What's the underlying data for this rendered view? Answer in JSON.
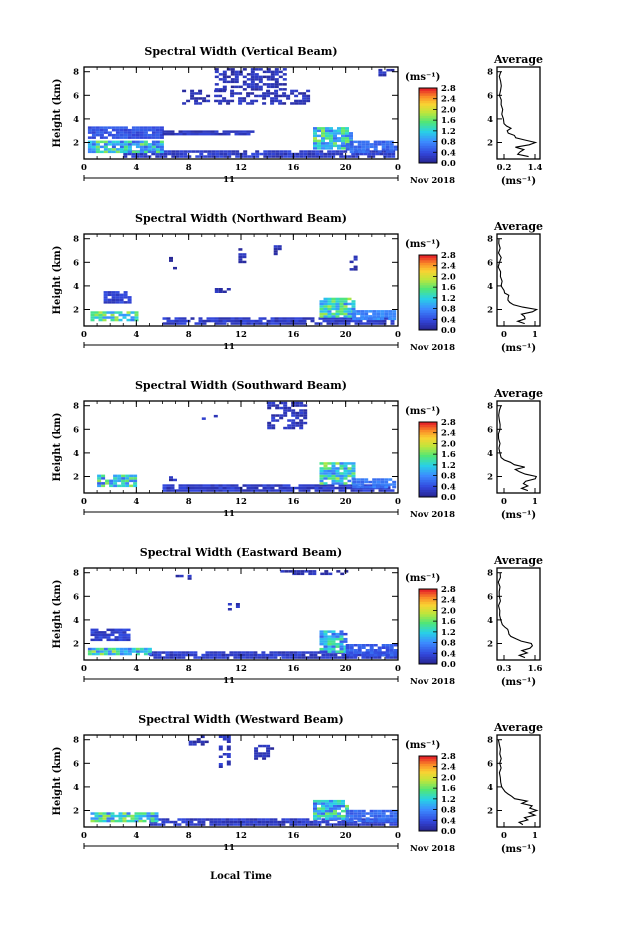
{
  "figure": {
    "x_title": "Local Time",
    "date_label": "11",
    "month_label": "Nov 2018"
  },
  "chart_data": [
    {
      "type": "heatmap",
      "title": "Spectral Width (Vertical Beam)",
      "ylabel": "Height (km)",
      "xlabel": "Local Time",
      "xticks": [
        "0",
        "4",
        "8",
        "12",
        "16",
        "20",
        "0"
      ],
      "yticks": [
        "2",
        "4",
        "6",
        "8"
      ],
      "xlim": [
        0,
        24
      ],
      "ylim": [
        0.6,
        8.4
      ],
      "colorbar": {
        "label": "(ms⁻¹)",
        "ticks": [
          "0.0",
          "0.4",
          "0.8",
          "1.2",
          "1.6",
          "2.0",
          "2.4",
          "2.8"
        ],
        "range": [
          0,
          3.0
        ]
      },
      "regions": [
        {
          "t0": 3,
          "t1": 24,
          "h0": 0.7,
          "h1": 1.3,
          "v": 0.25
        },
        {
          "t0": 0.3,
          "t1": 6,
          "h0": 1.1,
          "h1": 2.1,
          "v": 1.2
        },
        {
          "t0": 17.5,
          "t1": 20.5,
          "h0": 1.4,
          "h1": 3.3,
          "v": 1.3
        },
        {
          "t0": 20,
          "t1": 24,
          "h0": 1.1,
          "h1": 2.0,
          "v": 0.6
        },
        {
          "t0": 0.3,
          "t1": 6,
          "h0": 2.3,
          "h1": 3.2,
          "v": 0.45
        },
        {
          "t0": 6,
          "t1": 13,
          "h0": 2.6,
          "h1": 3.0,
          "v": 0.2
        },
        {
          "t0": 10,
          "t1": 15.5,
          "h0": 6.4,
          "h1": 8.3,
          "v": 0.15
        },
        {
          "t0": 7.5,
          "t1": 17,
          "h0": 5.2,
          "h1": 6.3,
          "v": 0.15
        },
        {
          "t0": 22.5,
          "t1": 24,
          "h0": 7.6,
          "h1": 8.2,
          "v": 0.15
        }
      ],
      "average": {
        "title": "Average",
        "xlabel": "(ms⁻¹)",
        "xticks": [
          "0.2",
          "1.4"
        ],
        "yticks": [
          "2",
          "4",
          "6",
          "8"
        ],
        "xlim": [
          0,
          1.6
        ],
        "ylim": [
          0.6,
          8.4
        ],
        "heights": [
          0.8,
          1.0,
          1.2,
          1.4,
          1.6,
          1.8,
          2.0,
          2.2,
          2.4,
          2.6,
          2.8,
          3.0,
          3.2,
          3.4,
          3.6,
          4.0,
          4.4,
          4.8,
          5.2,
          5.6,
          6.0,
          6.4,
          6.8,
          7.2,
          7.6,
          8.0
        ],
        "values": [
          1.2,
          0.8,
          0.9,
          1.0,
          0.7,
          1.2,
          1.4,
          1.1,
          0.7,
          0.6,
          0.45,
          0.4,
          0.5,
          0.35,
          0.25,
          0.2,
          0.18,
          0.16,
          0.15,
          0.14,
          0.14,
          0.15,
          0.16,
          0.15,
          0.14,
          0.15
        ]
      }
    },
    {
      "type": "heatmap",
      "title": "Spectral Width (Northward Beam)",
      "ylabel": "Height (km)",
      "xlabel": "Local Time",
      "xticks": [
        "0",
        "4",
        "8",
        "12",
        "16",
        "20",
        "0"
      ],
      "yticks": [
        "2",
        "4",
        "6",
        "8"
      ],
      "xlim": [
        0,
        24
      ],
      "ylim": [
        0.6,
        8.4
      ],
      "colorbar": {
        "label": "(ms⁻¹)",
        "ticks": [
          "0.0",
          "0.4",
          "0.8",
          "1.2",
          "1.6",
          "2.0",
          "2.4",
          "2.8"
        ],
        "range": [
          0,
          3.0
        ]
      },
      "regions": [
        {
          "t0": 6,
          "t1": 24,
          "h0": 0.7,
          "h1": 1.2,
          "v": 0.25
        },
        {
          "t0": 0.5,
          "t1": 4,
          "h0": 1.0,
          "h1": 1.7,
          "v": 1.3
        },
        {
          "t0": 1.5,
          "t1": 3.5,
          "h0": 2.5,
          "h1": 3.4,
          "v": 0.3
        },
        {
          "t0": 18,
          "t1": 20.5,
          "h0": 1.3,
          "h1": 2.8,
          "v": 1.3
        },
        {
          "t0": 20.5,
          "t1": 24,
          "h0": 1.1,
          "h1": 1.8,
          "v": 0.8
        },
        {
          "t0": 6.5,
          "t1": 7,
          "h0": 5.4,
          "h1": 6.3,
          "v": 0.15
        },
        {
          "t0": 11.8,
          "t1": 12.3,
          "h0": 5.5,
          "h1": 7.2,
          "v": 0.15
        },
        {
          "t0": 14.5,
          "t1": 15,
          "h0": 6.6,
          "h1": 7.3,
          "v": 0.15
        },
        {
          "t0": 20.3,
          "t1": 20.7,
          "h0": 5.3,
          "h1": 6.5,
          "v": 0.15
        },
        {
          "t0": 10,
          "t1": 11,
          "h0": 3.4,
          "h1": 3.7,
          "v": 0.15
        }
      ],
      "average": {
        "title": "Average",
        "xlabel": "(ms⁻¹)",
        "xticks": [
          "0",
          "1"
        ],
        "yticks": [
          "2",
          "4",
          "6",
          "8"
        ],
        "xlim": [
          0,
          1.6
        ],
        "ylim": [
          0.6,
          8.4
        ],
        "heights": [
          0.8,
          1.0,
          1.2,
          1.4,
          1.6,
          1.8,
          2.0,
          2.2,
          2.4,
          2.6,
          2.8,
          3.0,
          3.2,
          3.4,
          3.6,
          4.0,
          4.4,
          4.8,
          5.2,
          5.6,
          6.0,
          6.4,
          6.8,
          7.2,
          7.6,
          8.0
        ],
        "values": [
          1.0,
          0.8,
          1.1,
          1.0,
          0.9,
          1.3,
          1.5,
          1.0,
          0.6,
          0.5,
          0.45,
          0.4,
          0.42,
          0.3,
          0.22,
          0.18,
          0.15,
          0.12,
          0.1,
          0.1,
          0.1,
          0.12,
          0.1,
          0.1,
          0.1,
          0.1
        ]
      }
    },
    {
      "type": "heatmap",
      "title": "Spectral Width (Southward Beam)",
      "ylabel": "Height (km)",
      "xlabel": "Local Time",
      "xticks": [
        "0",
        "4",
        "8",
        "12",
        "16",
        "20",
        "0"
      ],
      "yticks": [
        "2",
        "4",
        "6",
        "8"
      ],
      "xlim": [
        0,
        24
      ],
      "ylim": [
        0.6,
        8.4
      ],
      "colorbar": {
        "label": "(ms⁻¹)",
        "ticks": [
          "0.0",
          "0.4",
          "0.8",
          "1.2",
          "1.6",
          "2.0",
          "2.4",
          "2.8"
        ],
        "range": [
          0,
          3.0
        ]
      },
      "regions": [
        {
          "t0": 6,
          "t1": 24,
          "h0": 0.7,
          "h1": 1.2,
          "v": 0.25
        },
        {
          "t0": 1,
          "t1": 4,
          "h0": 1.1,
          "h1": 2.0,
          "v": 1.2
        },
        {
          "t0": 18,
          "t1": 20.5,
          "h0": 1.3,
          "h1": 3.0,
          "v": 1.3
        },
        {
          "t0": 20.5,
          "t1": 24,
          "h0": 1.0,
          "h1": 1.8,
          "v": 0.7
        },
        {
          "t0": 14,
          "t1": 17,
          "h0": 6.0,
          "h1": 8.3,
          "v": 0.2
        },
        {
          "t0": 9,
          "t1": 10,
          "h0": 6.8,
          "h1": 7.2,
          "v": 0.15
        },
        {
          "t0": 6.5,
          "t1": 7,
          "h0": 1.6,
          "h1": 2.0,
          "v": 0.15
        }
      ],
      "average": {
        "title": "Average",
        "xlabel": "(ms⁻¹)",
        "xticks": [
          "0",
          "1"
        ],
        "yticks": [
          "2",
          "4",
          "6",
          "8"
        ],
        "xlim": [
          0,
          1.6
        ],
        "ylim": [
          0.6,
          8.4
        ],
        "heights": [
          0.8,
          1.0,
          1.2,
          1.4,
          1.6,
          1.8,
          2.0,
          2.2,
          2.4,
          2.6,
          2.8,
          3.0,
          3.2,
          3.4,
          3.6,
          4.0,
          4.4,
          4.8,
          5.2,
          5.6,
          6.0,
          6.4,
          6.8,
          7.2,
          7.6,
          8.0
        ],
        "values": [
          1.1,
          0.9,
          1.2,
          1.0,
          1.1,
          1.4,
          1.5,
          1.1,
          0.8,
          0.7,
          1.0,
          0.6,
          0.5,
          0.3,
          0.2,
          0.15,
          0.12,
          0.1,
          0.1,
          0.08,
          0.1,
          0.1,
          0.08,
          0.1,
          0.1,
          0.1
        ]
      }
    },
    {
      "type": "heatmap",
      "title": "Spectral Width (Eastward Beam)",
      "ylabel": "Height (km)",
      "xlabel": "Local Time",
      "xticks": [
        "0",
        "4",
        "8",
        "12",
        "16",
        "20",
        "0"
      ],
      "yticks": [
        "2",
        "4",
        "6",
        "8"
      ],
      "xlim": [
        0,
        24
      ],
      "ylim": [
        0.6,
        8.4
      ],
      "colorbar": {
        "label": "(ms⁻¹)",
        "ticks": [
          "0.0",
          "0.4",
          "0.8",
          "1.2",
          "1.6",
          "2.0",
          "2.4",
          "2.8"
        ],
        "range": [
          0,
          3.0
        ]
      },
      "regions": [
        {
          "t0": 5,
          "t1": 24,
          "h0": 0.7,
          "h1": 1.2,
          "v": 0.25
        },
        {
          "t0": 0.3,
          "t1": 5,
          "h0": 1.0,
          "h1": 1.6,
          "v": 1.3
        },
        {
          "t0": 0.5,
          "t1": 3.5,
          "h0": 2.2,
          "h1": 3.2,
          "v": 0.3
        },
        {
          "t0": 18,
          "t1": 20,
          "h0": 1.2,
          "h1": 3.1,
          "v": 1.0
        },
        {
          "t0": 20,
          "t1": 24,
          "h0": 0.9,
          "h1": 1.8,
          "v": 0.5
        },
        {
          "t0": 11,
          "t1": 11.7,
          "h0": 4.8,
          "h1": 5.4,
          "v": 0.15
        },
        {
          "t0": 15,
          "t1": 20,
          "h0": 7.8,
          "h1": 8.2,
          "v": 0.15
        },
        {
          "t0": 7,
          "t1": 8,
          "h0": 7.4,
          "h1": 7.8,
          "v": 0.15
        }
      ],
      "average": {
        "title": "Average",
        "xlabel": "(ms⁻¹)",
        "xticks": [
          "0.3",
          "1.6"
        ],
        "yticks": [
          "2",
          "4",
          "6",
          "8"
        ],
        "xlim": [
          0,
          1.7
        ],
        "ylim": [
          0.6,
          8.4
        ],
        "heights": [
          0.8,
          1.0,
          1.2,
          1.4,
          1.6,
          1.8,
          2.0,
          2.2,
          2.4,
          2.6,
          2.8,
          3.0,
          3.2,
          3.4,
          3.6,
          4.0,
          4.4,
          4.8,
          5.2,
          5.6,
          6.0,
          6.4,
          6.8,
          7.2,
          7.6,
          8.0
        ],
        "values": [
          1.1,
          0.9,
          1.2,
          1.0,
          1.3,
          1.4,
          1.3,
          0.9,
          0.8,
          0.6,
          0.5,
          0.45,
          0.4,
          0.3,
          0.25,
          0.2,
          0.15,
          0.12,
          0.1,
          0.1,
          0.1,
          0.1,
          0.1,
          0.1,
          0.1,
          0.1
        ]
      }
    },
    {
      "type": "heatmap",
      "title": "Spectral Width (Westward Beam)",
      "ylabel": "Height (km)",
      "xlabel": "Local Time",
      "xticks": [
        "0",
        "4",
        "8",
        "12",
        "16",
        "20",
        "0"
      ],
      "yticks": [
        "2",
        "4",
        "6",
        "8"
      ],
      "xlim": [
        0,
        24
      ],
      "ylim": [
        0.6,
        8.4
      ],
      "colorbar": {
        "label": "(ms⁻¹)",
        "ticks": [
          "0.0",
          "0.4",
          "0.8",
          "1.2",
          "1.6",
          "2.0",
          "2.4",
          "2.8"
        ],
        "range": [
          0,
          3.0
        ]
      },
      "regions": [
        {
          "t0": 5,
          "t1": 24,
          "h0": 0.7,
          "h1": 1.3,
          "v": 0.25
        },
        {
          "t0": 0.5,
          "t1": 5.5,
          "h0": 1.0,
          "h1": 1.8,
          "v": 1.3
        },
        {
          "t0": 17.5,
          "t1": 20,
          "h0": 1.2,
          "h1": 2.8,
          "v": 1.2
        },
        {
          "t0": 20,
          "t1": 24,
          "h0": 1.0,
          "h1": 2.0,
          "v": 0.6
        },
        {
          "t0": 10.3,
          "t1": 11.2,
          "h0": 5.6,
          "h1": 8.3,
          "v": 0.2
        },
        {
          "t0": 8,
          "t1": 9.5,
          "h0": 7.5,
          "h1": 8.3,
          "v": 0.15
        },
        {
          "t0": 13,
          "t1": 14.5,
          "h0": 6.3,
          "h1": 7.5,
          "v": 0.15
        }
      ],
      "average": {
        "title": "Average",
        "xlabel": "(ms⁻¹)",
        "xticks": [
          "0",
          "1"
        ],
        "yticks": [
          "2",
          "4",
          "6",
          "8"
        ],
        "xlim": [
          0,
          1.6
        ],
        "ylim": [
          0.6,
          8.4
        ],
        "heights": [
          0.8,
          1.0,
          1.2,
          1.4,
          1.6,
          1.8,
          2.0,
          2.2,
          2.4,
          2.6,
          2.8,
          3.0,
          3.2,
          3.4,
          3.6,
          4.0,
          4.4,
          4.8,
          5.2,
          5.6,
          6.0,
          6.4,
          6.8,
          7.2,
          7.6,
          8.0
        ],
        "values": [
          1.0,
          0.8,
          1.1,
          1.0,
          1.4,
          1.2,
          1.5,
          1.2,
          1.3,
          0.9,
          1.1,
          0.7,
          0.5,
          0.4,
          0.3,
          0.2,
          0.15,
          0.12,
          0.1,
          0.1,
          0.12,
          0.14,
          0.12,
          0.1,
          0.1,
          0.1
        ]
      }
    }
  ]
}
